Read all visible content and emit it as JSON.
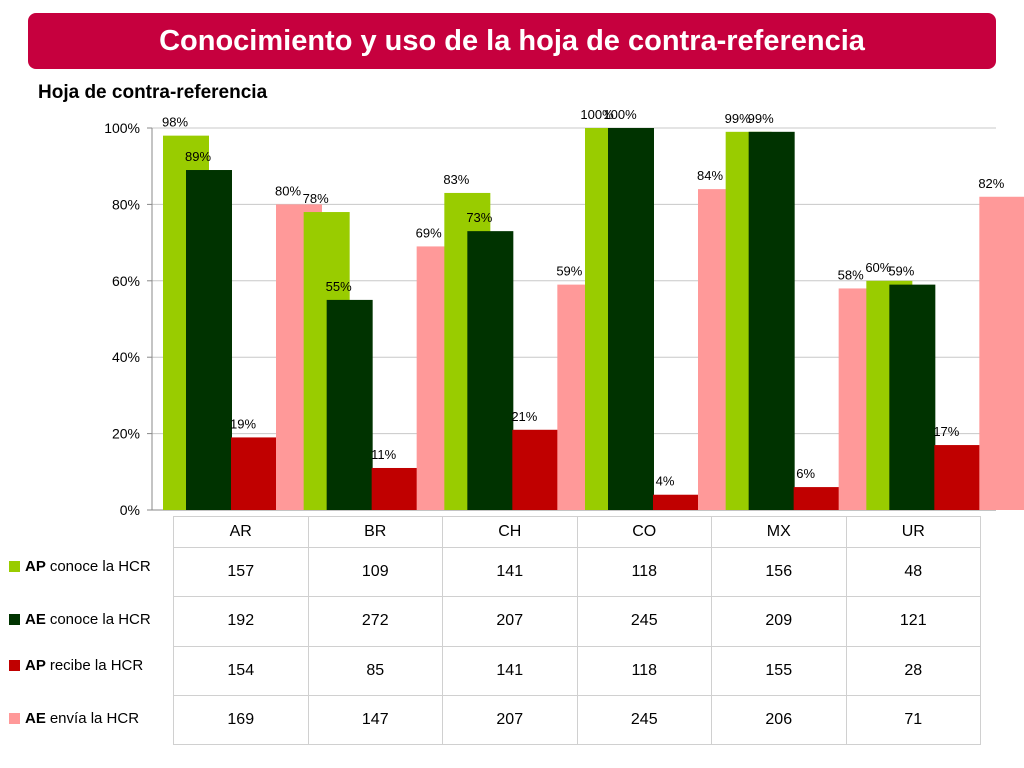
{
  "header": {
    "title": "Conocimiento y uso de la hoja de contra-referencia"
  },
  "chart_data": {
    "type": "bar",
    "title": "Hoja de contra-referencia",
    "categories": [
      "AR",
      "BR",
      "CH",
      "CO",
      "MX",
      "UR"
    ],
    "ylim": [
      0,
      100
    ],
    "yticks": [
      "0%",
      "20%",
      "40%",
      "60%",
      "80%",
      "100%"
    ],
    "grid": true,
    "legend_placement": "left of data table",
    "series": [
      {
        "name": "AP conoce la HCR",
        "prefix": "AP",
        "suffix": "conoce la HCR",
        "color": "#99cc00",
        "values": [
          98,
          78,
          83,
          100,
          99,
          60
        ],
        "labels": [
          "98%",
          "78%",
          "83%",
          "100%",
          "99%",
          "60%"
        ]
      },
      {
        "name": "AE conoce la HCR",
        "prefix": "AE",
        "suffix": "conoce la HCR",
        "color": "#003300",
        "values": [
          89,
          55,
          73,
          100,
          99,
          59
        ],
        "labels": [
          "89%",
          "55%",
          "73%",
          "100%",
          "99%",
          "59%"
        ]
      },
      {
        "name": "AP recibe la HCR",
        "prefix": "AP",
        "suffix": "recibe la HCR",
        "color": "#c00000",
        "values": [
          19,
          11,
          21,
          4,
          6,
          17
        ],
        "labels": [
          "19%",
          "11%",
          "21%",
          "4%",
          "6%",
          "17%"
        ]
      },
      {
        "name": "AE envía la HCR",
        "prefix": "AE",
        "suffix": "envía la HCR",
        "color": "#ff9999",
        "values": [
          80,
          69,
          59,
          84,
          58,
          82
        ],
        "labels": [
          "80%",
          "69%",
          "59%",
          "84%",
          "58%",
          "82%"
        ]
      }
    ],
    "table": {
      "rows": [
        [
          "157",
          "109",
          "141",
          "118",
          "156",
          "48"
        ],
        [
          "192",
          "272",
          "207",
          "245",
          "209",
          "121"
        ],
        [
          "154",
          "85",
          "141",
          "118",
          "155",
          "28"
        ],
        [
          "169",
          "147",
          "207",
          "245",
          "206",
          "71"
        ]
      ]
    }
  }
}
